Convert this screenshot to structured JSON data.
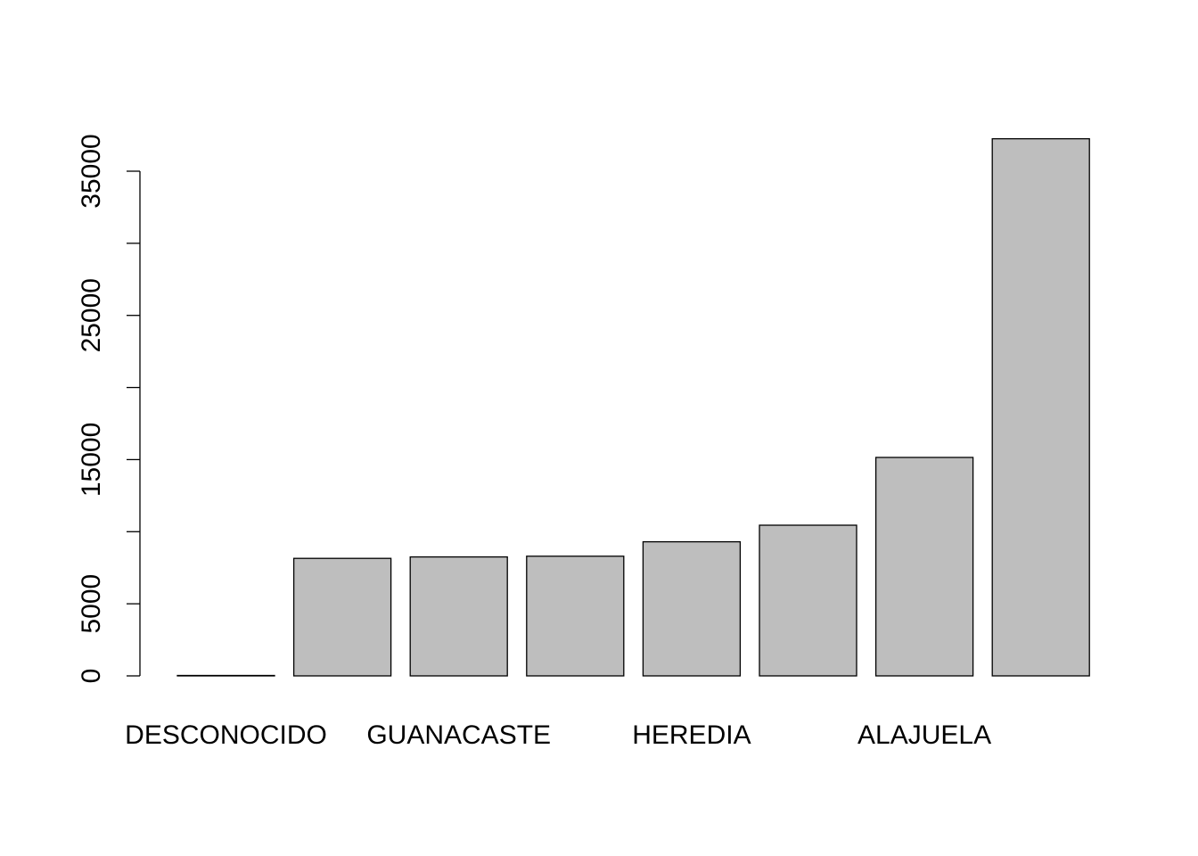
{
  "chart_data": {
    "type": "bar",
    "categories": [
      "DESCONOCIDO",
      "",
      "GUANACASTE",
      "",
      "HEREDIA",
      "",
      "ALAJUELA",
      ""
    ],
    "values": [
      30,
      8150,
      8250,
      8300,
      9300,
      10450,
      15150,
      37250
    ],
    "ylim": [
      0,
      35000
    ],
    "yticks": [
      0,
      5000,
      10000,
      15000,
      20000,
      25000,
      30000,
      35000
    ],
    "ytick_labels": [
      "0",
      "5000",
      "",
      "15000",
      "",
      "25000",
      "",
      "35000"
    ],
    "title": "",
    "xlabel": "",
    "ylabel": "",
    "grid": false,
    "legend": "none",
    "colors": {
      "bar_fill": "#bebebe",
      "bar_stroke": "#000000",
      "axis": "#000000",
      "text": "#000000"
    }
  }
}
